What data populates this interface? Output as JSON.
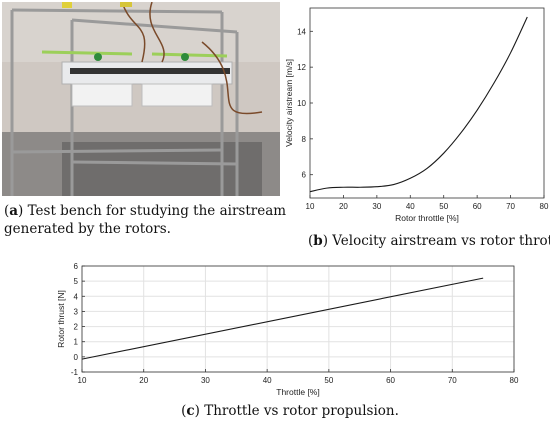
{
  "figure": {
    "captions": [
      {
        "tag": "a",
        "text": "Test bench for studying the airstream generated by the rotors."
      },
      {
        "tag": "b",
        "text": "Velocity airstream vs rotor throttle."
      },
      {
        "tag": "c",
        "text": "Throttle vs rotor propulsion."
      }
    ]
  },
  "colors": {
    "line": "#1a1a1a",
    "grid": "#e2e2e2",
    "axis": "#333333"
  },
  "chart_data": [
    {
      "type": "line",
      "title": "",
      "xlabel": "Rotor throttle [%]",
      "ylabel": "Velocity airstream [m/s]",
      "xlim": [
        10,
        80
      ],
      "ylim": [
        4.7,
        15.3
      ],
      "xticks": [
        10,
        20,
        30,
        40,
        50,
        60,
        70,
        80
      ],
      "yticks": [
        6,
        8,
        10,
        12,
        14
      ],
      "grid": false,
      "series": [
        {
          "x": [
            10,
            15,
            20,
            25,
            30,
            35,
            40,
            45,
            50,
            55,
            60,
            65,
            70,
            75
          ],
          "y": [
            5.05,
            5.25,
            5.3,
            5.3,
            5.33,
            5.45,
            5.8,
            6.35,
            7.2,
            8.3,
            9.6,
            11.1,
            12.8,
            14.8
          ]
        }
      ]
    },
    {
      "type": "line",
      "title": "",
      "xlabel": "Throttle [%]",
      "ylabel": "Rotor thrust [N]",
      "xlim": [
        10,
        80
      ],
      "ylim": [
        -1,
        6
      ],
      "xticks": [
        10,
        20,
        30,
        40,
        50,
        60,
        70,
        80
      ],
      "yticks": [
        -1,
        0,
        1,
        2,
        3,
        4,
        5,
        6
      ],
      "grid": true,
      "series": [
        {
          "x": [
            10,
            75
          ],
          "y": [
            -0.15,
            5.2
          ]
        }
      ]
    }
  ]
}
